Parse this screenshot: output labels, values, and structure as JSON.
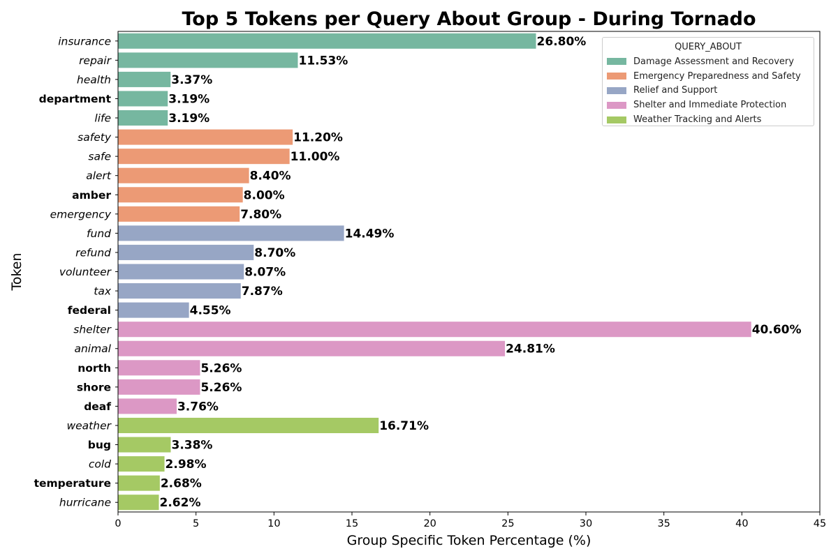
{
  "chart_data": {
    "type": "bar",
    "orientation": "horizontal",
    "title": "Top 5 Tokens per Query About Group - During Tornado",
    "xlabel": "Group Specific Token Percentage (%)",
    "ylabel": "Token",
    "xlim": [
      0,
      45
    ],
    "xticks": [
      0,
      5,
      10,
      15,
      20,
      25,
      30,
      35,
      40,
      45
    ],
    "grid": false,
    "legend_title": "QUERY_ABOUT",
    "legend_placement": "top-right",
    "groups": [
      {
        "name": "Damage Assessment and Recovery",
        "color": "#76b7a0"
      },
      {
        "name": "Emergency Preparedness and Safety",
        "color": "#ec9a75"
      },
      {
        "name": "Relief and Support",
        "color": "#97a6c5"
      },
      {
        "name": "Shelter and Immediate Protection",
        "color": "#dc98c5"
      },
      {
        "name": "Weather Tracking and Alerts",
        "color": "#a5c964"
      }
    ],
    "bars": [
      {
        "token": "insurance",
        "group": 0,
        "value": 26.8,
        "label": "26.80%",
        "bold": false
      },
      {
        "token": "repair",
        "group": 0,
        "value": 11.53,
        "label": "11.53%",
        "bold": false
      },
      {
        "token": "health",
        "group": 0,
        "value": 3.37,
        "label": "3.37%",
        "bold": false
      },
      {
        "token": "department",
        "group": 0,
        "value": 3.19,
        "label": "3.19%",
        "bold": true
      },
      {
        "token": "life",
        "group": 0,
        "value": 3.19,
        "label": "3.19%",
        "bold": false
      },
      {
        "token": "safety",
        "group": 1,
        "value": 11.2,
        "label": "11.20%",
        "bold": false
      },
      {
        "token": "safe",
        "group": 1,
        "value": 11.0,
        "label": "11.00%",
        "bold": false
      },
      {
        "token": "alert",
        "group": 1,
        "value": 8.4,
        "label": "8.40%",
        "bold": false
      },
      {
        "token": "amber",
        "group": 1,
        "value": 8.0,
        "label": "8.00%",
        "bold": true
      },
      {
        "token": "emergency",
        "group": 1,
        "value": 7.8,
        "label": "7.80%",
        "bold": false
      },
      {
        "token": "fund",
        "group": 2,
        "value": 14.49,
        "label": "14.49%",
        "bold": false
      },
      {
        "token": "refund",
        "group": 2,
        "value": 8.7,
        "label": "8.70%",
        "bold": false
      },
      {
        "token": "volunteer",
        "group": 2,
        "value": 8.07,
        "label": "8.07%",
        "bold": false
      },
      {
        "token": "tax",
        "group": 2,
        "value": 7.87,
        "label": "7.87%",
        "bold": false
      },
      {
        "token": "federal",
        "group": 2,
        "value": 4.55,
        "label": "4.55%",
        "bold": true
      },
      {
        "token": "shelter",
        "group": 3,
        "value": 40.6,
        "label": "40.60%",
        "bold": false
      },
      {
        "token": "animal",
        "group": 3,
        "value": 24.81,
        "label": "24.81%",
        "bold": false
      },
      {
        "token": "north",
        "group": 3,
        "value": 5.26,
        "label": "5.26%",
        "bold": true
      },
      {
        "token": "shore",
        "group": 3,
        "value": 5.26,
        "label": "5.26%",
        "bold": true
      },
      {
        "token": "deaf",
        "group": 3,
        "value": 3.76,
        "label": "3.76%",
        "bold": true
      },
      {
        "token": "weather",
        "group": 4,
        "value": 16.71,
        "label": "16.71%",
        "bold": false
      },
      {
        "token": "bug",
        "group": 4,
        "value": 3.38,
        "label": "3.38%",
        "bold": true
      },
      {
        "token": "cold",
        "group": 4,
        "value": 2.98,
        "label": "2.98%",
        "bold": false
      },
      {
        "token": "temperature",
        "group": 4,
        "value": 2.68,
        "label": "2.68%",
        "bold": true
      },
      {
        "token": "hurricane",
        "group": 4,
        "value": 2.62,
        "label": "2.62%",
        "bold": false
      }
    ]
  }
}
